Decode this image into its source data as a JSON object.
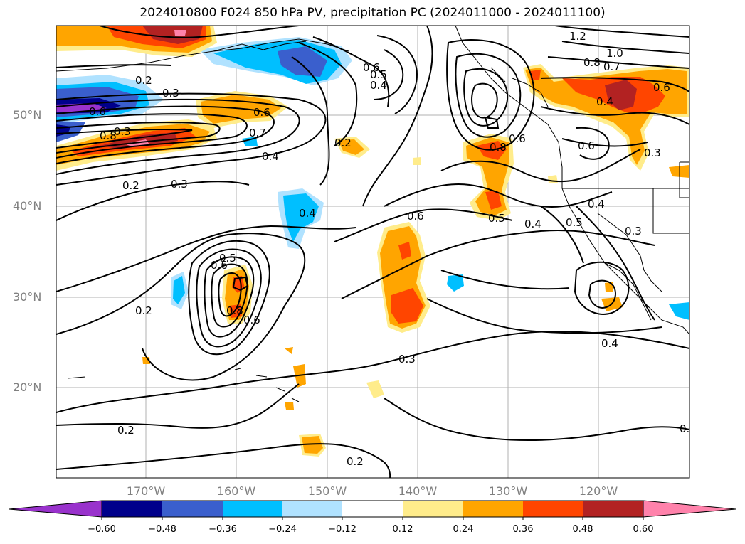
{
  "title": "2024010800 F024 850 hPa PV, precipitation PC (2024011000 - 2024011100)",
  "lat_labels": [
    "50°N",
    "40°N",
    "30°N",
    "20°N"
  ],
  "lon_labels": [
    "170°W",
    "160°W",
    "150°W",
    "140°W",
    "130°W",
    "120°W"
  ],
  "colorbar": {
    "ticks": [
      "−0.60",
      "−0.48",
      "−0.36",
      "−0.24",
      "−0.12",
      "0.12",
      "0.24",
      "0.36",
      "0.48",
      "0.60"
    ],
    "colors": [
      "#9932cc",
      "#00008b",
      "#3a5fcd",
      "#00bfff",
      "#b0e2ff",
      "#ffffff",
      "#ffec8b",
      "#ffa500",
      "#ff4500",
      "#b22222",
      "#ff82ab"
    ]
  },
  "contour_labels": [
    "1.2",
    "1.0",
    "0.8",
    "0.7",
    "0.6",
    "0.6",
    "0.5",
    "0.4",
    "0.2",
    "0.3",
    "0.6",
    "0.8",
    "0.6",
    "0.7",
    "0.4",
    "0.2",
    "0.3",
    "0.2",
    "0.4",
    "0.6",
    "0.4",
    "0.5",
    "0.4",
    "0.3",
    "0.5",
    "0.8",
    "0.6",
    "0.2",
    "0.3",
    "0.4",
    "0.2",
    "0.2",
    "0.6",
    "0.4",
    "0.3",
    "0.6",
    "0.8",
    "0.6",
    "0.3",
    "0.5",
    "0.3"
  ],
  "colors": {
    "purple": "#9932cc",
    "navy": "#00008b",
    "blue": "#3a5fcd",
    "cyan": "#00bfff",
    "lightblue": "#b0e2ff",
    "yellow": "#ffec8b",
    "orange": "#ffa500",
    "redorange": "#ff4500",
    "darkred": "#b22222",
    "pink": "#ff82ab"
  }
}
